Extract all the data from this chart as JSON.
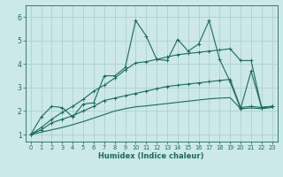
{
  "xlabel": "Humidex (Indice chaleur)",
  "xlim": [
    -0.5,
    23.5
  ],
  "ylim": [
    0.7,
    6.5
  ],
  "xticks": [
    0,
    1,
    2,
    3,
    4,
    5,
    6,
    7,
    8,
    9,
    10,
    11,
    12,
    13,
    14,
    15,
    16,
    17,
    18,
    19,
    20,
    21,
    22,
    23
  ],
  "yticks": [
    1,
    2,
    3,
    4,
    5,
    6
  ],
  "background_color": "#cce8e8",
  "grid_color": "#a8cccc",
  "line_color": "#1a6b5a",
  "line1_y": [
    1.0,
    1.75,
    2.2,
    2.15,
    1.75,
    2.3,
    2.35,
    3.5,
    3.5,
    3.85,
    5.85,
    5.2,
    4.2,
    4.15,
    5.05,
    4.55,
    4.85,
    5.85,
    4.2,
    3.25,
    2.1,
    3.7,
    2.15,
    2.2
  ],
  "line2_y": [
    1.0,
    1.3,
    1.65,
    1.95,
    2.2,
    2.5,
    2.85,
    3.1,
    3.4,
    3.75,
    4.05,
    4.1,
    4.2,
    4.3,
    4.4,
    4.45,
    4.5,
    4.55,
    4.6,
    4.65,
    4.15,
    4.15,
    2.15,
    2.2
  ],
  "line3_y": [
    1.0,
    1.2,
    1.5,
    1.65,
    1.8,
    2.0,
    2.2,
    2.45,
    2.55,
    2.65,
    2.75,
    2.85,
    2.95,
    3.05,
    3.1,
    3.15,
    3.2,
    3.25,
    3.3,
    3.35,
    2.15,
    2.2,
    2.15,
    2.2
  ],
  "line4_y": [
    1.0,
    1.1,
    1.2,
    1.3,
    1.42,
    1.55,
    1.7,
    1.85,
    2.0,
    2.1,
    2.18,
    2.22,
    2.27,
    2.32,
    2.37,
    2.42,
    2.47,
    2.52,
    2.55,
    2.57,
    2.1,
    2.13,
    2.1,
    2.15
  ]
}
